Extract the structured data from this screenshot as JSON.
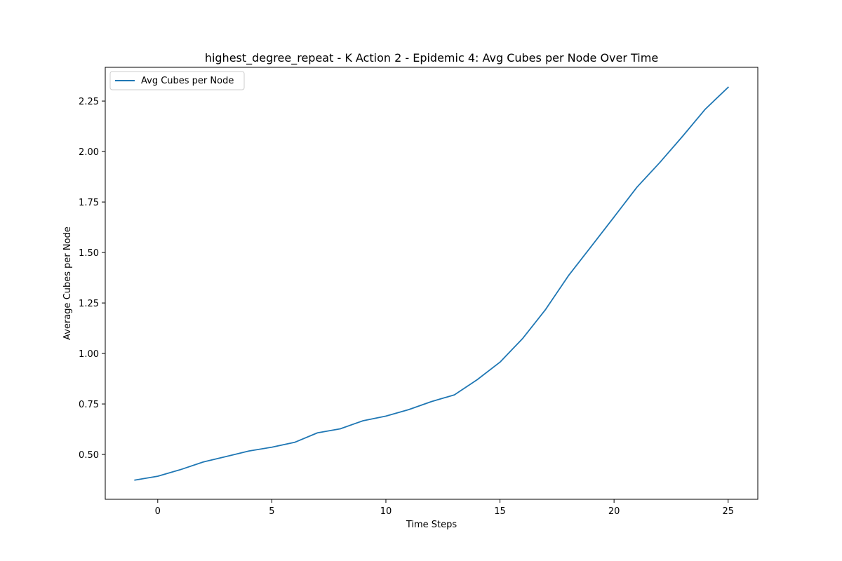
{
  "chart_data": {
    "type": "line",
    "title": "highest_degree_repeat - K Action 2 - Epidemic 4: Avg Cubes per Node Over Time",
    "xlabel": "Time Steps",
    "ylabel": "Average Cubes per Node",
    "xlim": [
      -2.3,
      26.3
    ],
    "ylim": [
      0.278,
      2.417
    ],
    "x_ticks": [
      0,
      5,
      10,
      15,
      20,
      25
    ],
    "y_ticks": [
      0.5,
      0.75,
      1.0,
      1.25,
      1.5,
      1.75,
      2.0,
      2.25
    ],
    "x_tick_labels": [
      "0",
      "5",
      "10",
      "15",
      "20",
      "25"
    ],
    "y_tick_labels": [
      "0.50",
      "0.75",
      "1.00",
      "1.25",
      "1.50",
      "1.75",
      "2.00",
      "2.25"
    ],
    "grid": false,
    "legend_position": "upper-left",
    "series": [
      {
        "name": "Avg Cubes per Node",
        "color": "#1f77b4",
        "x": [
          -1,
          0,
          1,
          2,
          3,
          4,
          5,
          6,
          7,
          8,
          9,
          10,
          11,
          12,
          13,
          14,
          15,
          16,
          17,
          18,
          19,
          20,
          21,
          22,
          23,
          24,
          25
        ],
        "y": [
          0.373,
          0.392,
          0.425,
          0.463,
          0.49,
          0.517,
          0.536,
          0.56,
          0.607,
          0.627,
          0.667,
          0.69,
          0.722,
          0.762,
          0.795,
          0.87,
          0.957,
          1.075,
          1.218,
          1.385,
          1.53,
          1.676,
          1.823,
          1.945,
          2.075,
          2.21,
          2.318
        ]
      }
    ]
  }
}
